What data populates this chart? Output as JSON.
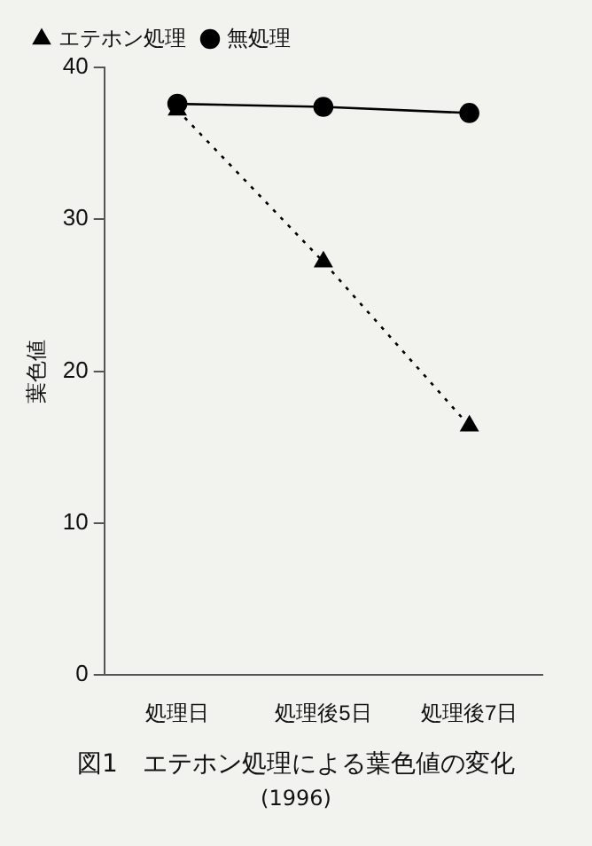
{
  "chart_data": {
    "type": "line",
    "title": "図1　エテホン処理による葉色値の変化",
    "subtitle": "(1996)",
    "ylabel": "葉色値",
    "categories": [
      "処理日",
      "処理後5日",
      "処理後7日"
    ],
    "series": [
      {
        "name": "エテホン処理",
        "color": "#000000",
        "values": [
          37.2,
          27.2,
          16.4
        ],
        "marker": "triangle",
        "line_style": "dotted"
      },
      {
        "name": "無処理",
        "color": "#000000",
        "values": [
          37.6,
          37.4,
          37.0
        ],
        "marker": "circle",
        "line_style": "solid"
      }
    ],
    "ylim": [
      0,
      40
    ],
    "yticks": [
      0,
      10,
      20,
      30,
      40
    ],
    "grid": false,
    "legend": "top left"
  }
}
